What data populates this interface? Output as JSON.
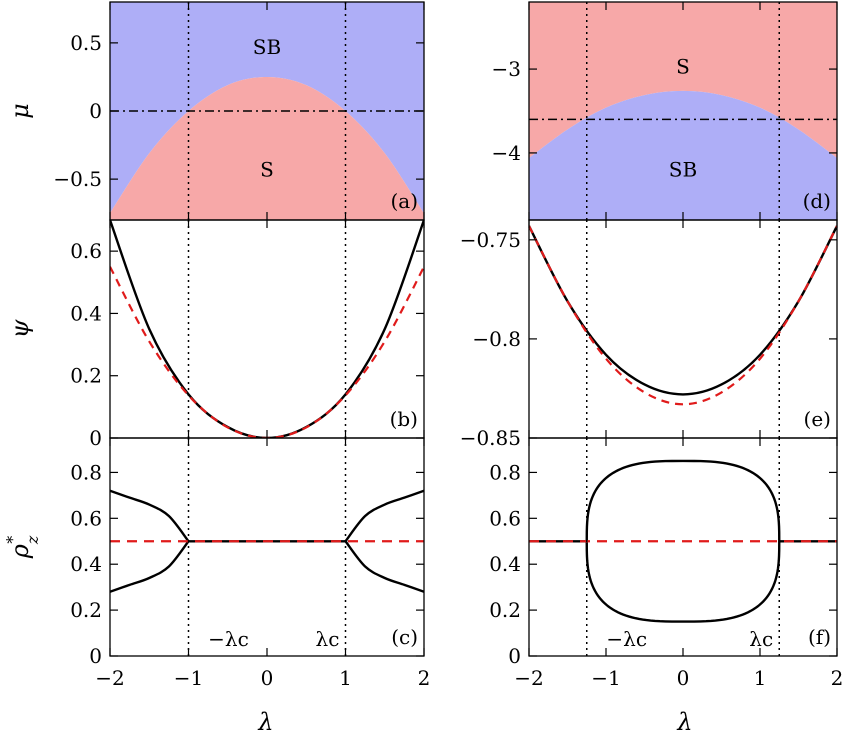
{
  "figure": {
    "x_axis_label": "λ",
    "panel_tags": [
      "(a)",
      "(b)",
      "(c)",
      "(d)",
      "(e)",
      "(f)"
    ],
    "colors": {
      "region_S": "#f7a8a8",
      "region_SB": "#aeaef7",
      "solid_curve": "#000000",
      "dashed_curve": "#e01b1b",
      "guide_lines": "#000000"
    }
  },
  "chart_data": [
    {
      "id": "a",
      "type": "area",
      "panel_tag": "(a)",
      "ylabel": "μ",
      "xlim": [
        -2,
        2
      ],
      "ylim": [
        -0.8,
        0.8
      ],
      "yticks": [
        -0.5,
        0,
        0.5
      ],
      "ytick_labels": [
        "−0.5",
        "0",
        "0.5"
      ],
      "xticks": [
        -2,
        -1,
        0,
        1,
        2
      ],
      "boundary": {
        "x": [
          -2,
          -1.5,
          -1,
          -0.5,
          0,
          0.5,
          1,
          1.5,
          2
        ],
        "y": [
          -0.75,
          -0.31,
          0,
          0.19,
          0.25,
          0.19,
          0,
          -0.31,
          -0.75
        ]
      },
      "region_above": "SB",
      "region_below": "S",
      "region_labels": [
        {
          "text": "SB",
          "x": 0,
          "y": 0.47
        },
        {
          "text": "S",
          "x": 0,
          "y": -0.43
        }
      ],
      "hline": {
        "y": 0,
        "style": "dash-dot"
      },
      "vlines": [
        -1,
        1
      ]
    },
    {
      "id": "b",
      "type": "line",
      "panel_tag": "(b)",
      "ylabel": "ψ",
      "xlim": [
        -2,
        2
      ],
      "ylim": [
        0,
        0.7
      ],
      "yticks": [
        0,
        0.2,
        0.4,
        0.6
      ],
      "ytick_labels": [
        "0",
        "0.2",
        "0.4",
        "0.6"
      ],
      "xticks": [
        -2,
        -1,
        0,
        1,
        2
      ],
      "x": [
        -2,
        -1.5,
        -1,
        -0.5,
        0,
        0.5,
        1,
        1.5,
        2
      ],
      "series": [
        {
          "style": "solid",
          "values": [
            0.7,
            0.35,
            0.14,
            0.035,
            0,
            0.035,
            0.14,
            0.35,
            0.7
          ]
        },
        {
          "style": "dashed",
          "values": [
            0.55,
            0.31,
            0.137,
            0.034,
            0,
            0.034,
            0.137,
            0.31,
            0.55
          ]
        }
      ],
      "vlines": [
        -1,
        1
      ]
    },
    {
      "id": "c",
      "type": "line",
      "panel_tag": "(c)",
      "ylabel": "ρz*",
      "xlim": [
        -2,
        2
      ],
      "ylim": [
        0,
        0.95
      ],
      "yticks": [
        0,
        0.2,
        0.4,
        0.6,
        0.8
      ],
      "ytick_labels": [
        "0",
        "0.2",
        "0.4",
        "0.6",
        "0.8"
      ],
      "xticks": [
        -2,
        -1,
        0,
        1,
        2
      ],
      "xtick_labels": [
        "−2",
        "−1",
        "0",
        "1",
        "2"
      ],
      "lambda_c": 1,
      "branch_amplitude": [
        0,
        0.11,
        0.16,
        0.19,
        0.22
      ],
      "branch_x": [
        1,
        1.25,
        1.5,
        1.75,
        2
      ],
      "constant_line": {
        "y": 0.5
      },
      "dashed_line": {
        "y": 0.5
      },
      "annotations": {
        "neg": "−λc",
        "pos": "λc"
      },
      "vlines": [
        -1,
        1
      ]
    },
    {
      "id": "d",
      "type": "area",
      "panel_tag": "(d)",
      "xlim": [
        -2,
        2
      ],
      "ylim": [
        -4.8,
        -2.2
      ],
      "yticks": [
        -4,
        -3
      ],
      "ytick_labels": [
        "−4",
        "−3"
      ],
      "xticks": [
        -2,
        -1,
        0,
        1,
        2
      ],
      "boundary": {
        "x": [
          -2,
          -1.5,
          -1,
          -0.5,
          0,
          0.5,
          1,
          1.5,
          2
        ],
        "y": [
          -4.06,
          -3.72,
          -3.46,
          -3.31,
          -3.26,
          -3.31,
          -3.46,
          -3.72,
          -4.06
        ]
      },
      "region_above": "S",
      "region_below": "SB",
      "region_labels": [
        {
          "text": "S",
          "x": 0,
          "y": -2.97
        },
        {
          "text": "SB",
          "x": 0,
          "y": -4.2
        }
      ],
      "hline": {
        "y": -3.6,
        "style": "dash-dot"
      },
      "vlines": [
        -1.25,
        1.25
      ]
    },
    {
      "id": "e",
      "type": "line",
      "panel_tag": "(e)",
      "xlim": [
        -2,
        2
      ],
      "ylim": [
        -0.85,
        -0.74
      ],
      "yticks": [
        -0.85,
        -0.8,
        -0.75
      ],
      "ytick_labels": [
        "−0.85",
        "−0.8",
        "−0.75"
      ],
      "xticks": [
        -2,
        -1,
        0,
        1,
        2
      ],
      "x": [
        -2,
        -1.5,
        -1,
        -0.5,
        0,
        0.5,
        1,
        1.5,
        2
      ],
      "series": [
        {
          "style": "solid",
          "values": [
            -0.743,
            -0.781,
            -0.808,
            -0.823,
            -0.828,
            -0.823,
            -0.808,
            -0.781,
            -0.743
          ]
        },
        {
          "style": "dashed",
          "values": [
            -0.743,
            -0.781,
            -0.81,
            -0.827,
            -0.833,
            -0.827,
            -0.81,
            -0.781,
            -0.743
          ]
        }
      ],
      "vlines": [
        -1.25,
        1.25
      ]
    },
    {
      "id": "f",
      "type": "line",
      "panel_tag": "(f)",
      "xlim": [
        -2,
        2
      ],
      "ylim": [
        0,
        0.95
      ],
      "yticks": [
        0,
        0.2,
        0.4,
        0.6,
        0.8
      ],
      "ytick_labels": [
        "0",
        "0.2",
        "0.4",
        "0.6",
        "0.8"
      ],
      "xticks": [
        -2,
        -1,
        0,
        1,
        2
      ],
      "xtick_labels": [
        "−2",
        "−1",
        "0",
        "1",
        "2"
      ],
      "lambda_c": 1.25,
      "loop": {
        "center": 0.5,
        "amplitude": 0.35
      },
      "constant_line": {
        "y": 0.5
      },
      "dashed_line": {
        "y": 0.5
      },
      "annotations": {
        "neg": "−λc",
        "pos": "λc"
      },
      "vlines": [
        -1.25,
        1.25
      ]
    }
  ]
}
